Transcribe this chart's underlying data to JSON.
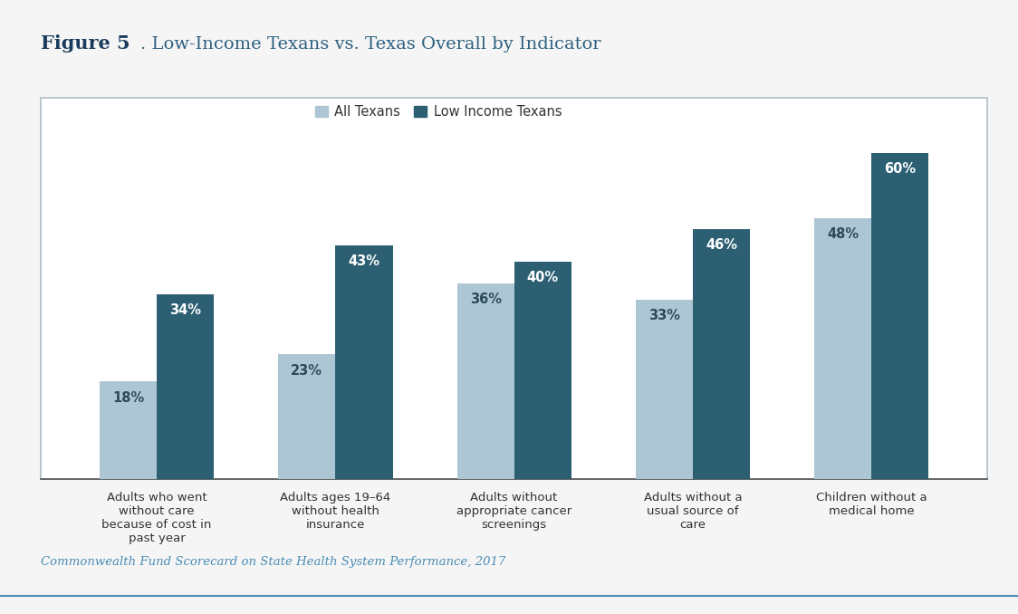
{
  "title_bold": "Figure 5",
  "title_rest": ". Low-Income Texans vs. Texas Overall by Indicator",
  "categories": [
    "Adults who went\nwithout care\nbecause of cost in\npast year",
    "Adults ages 19–64\nwithout health\ninsurance",
    "Adults without\nappropriate cancer\nscreenings",
    "Adults without a\nusual source of\ncare",
    "Children without a\nmedical home"
  ],
  "all_texans": [
    18,
    23,
    36,
    33,
    48
  ],
  "low_income": [
    34,
    43,
    40,
    46,
    60
  ],
  "color_all": "#adc6d4",
  "color_low": "#2d5f73",
  "legend_labels": [
    "All Texans",
    "Low Income Texans"
  ],
  "bar_width": 0.32,
  "ylim": [
    0,
    70
  ],
  "footnote": "Commonwealth Fund Scorecard on State Health System Performance, 2017",
  "bg_color": "#f5f5f5",
  "chart_bg": "#ffffff",
  "border_color": "#b0bec5",
  "label_color_all": "#2d4a5c",
  "label_color_low": "#ffffff",
  "title_color_bold": "#1a3a5c",
  "title_color_rest": "#2d6080",
  "footnote_color": "#4a8db5",
  "bottom_line_color": "#4a8db5",
  "xticklabel_color": "#333333",
  "legend_text_color": "#333333"
}
